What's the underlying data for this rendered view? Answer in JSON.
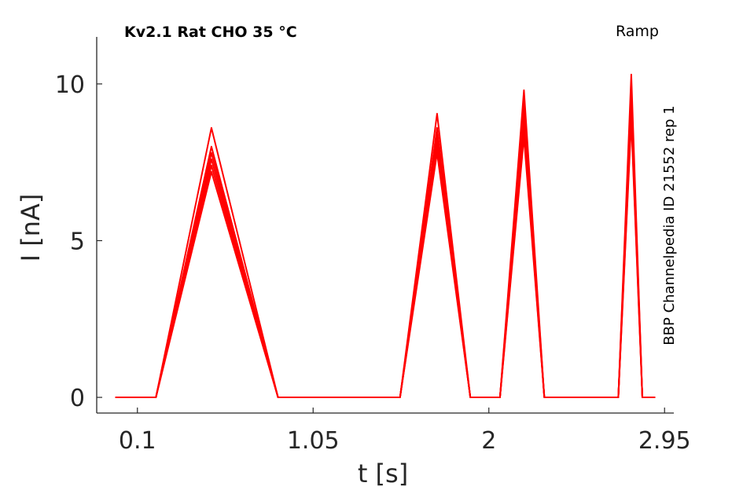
{
  "chart_data": {
    "type": "line",
    "title": "Kv2.1  Rat  CHO  35 °C",
    "protocol_label": "Ramp",
    "side_label": "BBP Channelpedia ID 21552 rep 1",
    "xlabel": "t [s]",
    "ylabel": "I [nA]",
    "xlim": [
      -0.12,
      3.0
    ],
    "ylim": [
      -0.5,
      11.5
    ],
    "xticks": [
      0.1,
      1.05,
      2,
      2.95
    ],
    "xtick_labels": [
      "0.1",
      "1.05",
      "2",
      "2.95"
    ],
    "yticks": [
      0,
      5,
      10
    ],
    "ytick_labels": [
      "0",
      "5",
      "10"
    ],
    "grid": false,
    "legend": "none",
    "line_color": "#ff0000",
    "series": [
      {
        "x": [
          -0.02,
          0.2,
          0.5,
          0.86,
          1.0,
          1.52,
          1.72,
          1.9,
          2.06,
          2.19,
          2.3,
          2.6,
          2.7,
          2.77,
          2.83,
          2.9
        ],
        "y": [
          0,
          0,
          8.6,
          0,
          0,
          0,
          9.05,
          0,
          0,
          9.8,
          0,
          0,
          0,
          10.3,
          0,
          0
        ]
      },
      {
        "x": [
          -0.02,
          0.2,
          0.5,
          0.86,
          1.0,
          1.52,
          1.72,
          1.9,
          2.06,
          2.19,
          2.3,
          2.6,
          2.7,
          2.77,
          2.83,
          2.9
        ],
        "y": [
          0,
          0,
          8.0,
          0,
          0,
          0,
          8.6,
          0,
          0,
          9.4,
          0,
          0,
          0,
          9.9,
          0,
          0
        ]
      },
      {
        "x": [
          -0.02,
          0.2,
          0.5,
          0.86,
          1.0,
          1.52,
          1.72,
          1.9,
          2.06,
          2.19,
          2.3,
          2.6,
          2.7,
          2.77,
          2.83,
          2.9
        ],
        "y": [
          0,
          0,
          7.8,
          0,
          0,
          0,
          8.4,
          0,
          0,
          9.1,
          0,
          0,
          0,
          9.6,
          0,
          0
        ]
      },
      {
        "x": [
          -0.02,
          0.2,
          0.5,
          0.86,
          1.0,
          1.52,
          1.72,
          1.9,
          2.06,
          2.19,
          2.3,
          2.6,
          2.7,
          2.77,
          2.83,
          2.9
        ],
        "y": [
          0,
          0,
          7.6,
          0,
          0,
          0,
          8.2,
          0,
          0,
          8.8,
          0,
          0,
          0,
          9.3,
          0,
          0
        ]
      },
      {
        "x": [
          -0.02,
          0.2,
          0.5,
          0.86,
          1.0,
          1.52,
          1.72,
          1.9,
          2.06,
          2.19,
          2.3,
          2.6,
          2.7,
          2.77,
          2.83,
          2.9
        ],
        "y": [
          0,
          0,
          7.4,
          0,
          0,
          0,
          8.0,
          0,
          0,
          8.5,
          0,
          0,
          0,
          9.0,
          0,
          0
        ]
      },
      {
        "x": [
          -0.02,
          0.2,
          0.5,
          0.86,
          1.0,
          1.52,
          1.72,
          1.9,
          2.06,
          2.19,
          2.3,
          2.6,
          2.7,
          2.77,
          2.83,
          2.9
        ],
        "y": [
          0,
          0,
          7.2,
          0,
          0,
          0,
          7.8,
          0,
          0,
          8.3,
          0,
          0,
          0,
          8.8,
          0,
          0
        ]
      }
    ]
  }
}
